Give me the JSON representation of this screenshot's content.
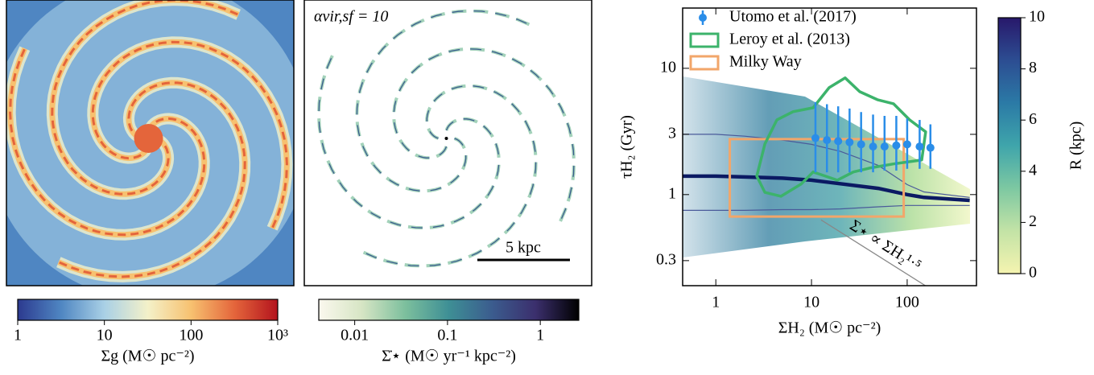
{
  "chart_data": [
    {
      "type": "map",
      "colorbar": {
        "label": "Σg (M☉ pc⁻²)",
        "log": true,
        "lim": [
          1,
          1000
        ],
        "ticks": [
          1,
          10,
          100,
          {
            "value": 1000,
            "label": "10³"
          }
        ],
        "colors": [
          "#2c3a8f",
          "#4f86c2",
          "#a9d0e6",
          "#f4f1c9",
          "#f7c170",
          "#e4653b",
          "#b3131d"
        ]
      }
    },
    {
      "type": "map",
      "annotation": "αvir,sf = 10",
      "scalebar": "5 kpc",
      "colorbar": {
        "label": "Σ̇⋆ (M☉ yr⁻¹ kpc⁻²)",
        "log": true,
        "lim": [
          0.0041,
          2.6
        ],
        "ticks": [
          0.01,
          0.1,
          1
        ],
        "colors": [
          "#fbf8ee",
          "#d6e5c4",
          "#7cbf9d",
          "#3e8f95",
          "#3b5c8e",
          "#3b2f6d",
          "#000000"
        ]
      }
    },
    {
      "type": "scatter",
      "xlabel": "ΣH₂ (M☉ pc⁻²)",
      "ylabel": "τH₂ (Gyr)",
      "xlog": true,
      "ylog": true,
      "xlim": [
        0.45,
        530
      ],
      "ylim": [
        0.19,
        30
      ],
      "xticks": [
        1,
        10,
        100
      ],
      "yticks": [
        0.3,
        1,
        3,
        10
      ],
      "legend": "upper left",
      "series": [
        {
          "name": "Utomo et al. (2017)",
          "color": "#2a8de8",
          "x": [
            11,
            14.5,
            19,
            25,
            33,
            44,
            58,
            77,
            100,
            135,
            175
          ],
          "values": [
            2.8,
            2.7,
            2.65,
            2.6,
            2.5,
            2.4,
            2.4,
            2.45,
            2.5,
            2.4,
            2.35
          ],
          "lower": [
            1.5,
            1.5,
            1.5,
            1.5,
            1.5,
            1.5,
            1.55,
            1.55,
            1.6,
            1.6,
            1.6
          ],
          "upper": [
            5.4,
            5.2,
            5.0,
            4.8,
            4.5,
            4.3,
            4.2,
            4.2,
            4.0,
            3.9,
            3.6
          ]
        }
      ],
      "contours": [
        {
          "name": "Leroy et al. (2013)",
          "color": "#3cb36b",
          "x": [
            2.68,
            3.26,
            4.35,
            6.41,
            10.4,
            15.3,
            22.5,
            31.9,
            48.9,
            71.9,
            106,
            156,
            142,
            71.9,
            40.3,
            27.4,
            18.6,
            10.4,
            7.78,
            4.8,
            3.26
          ],
          "values": [
            1.4,
            2.52,
            3.91,
            4.53,
            4.87,
            7.03,
            8.39,
            6.53,
            5.64,
            5.24,
            3.91,
            3.14,
            1.88,
            1.75,
            1.62,
            1.51,
            1.3,
            1.51,
            1.21,
            0.97,
            1.04
          ]
        }
      ],
      "boxes": [
        {
          "name": "Milky Way",
          "color": "#f2a66a",
          "x": [
            1.4,
            92
          ],
          "y": [
            0.67,
            2.75
          ]
        }
      ],
      "lines": [
        {
          "color": "#0b1a63",
          "x": [
            0.45,
            1,
            2,
            5,
            10,
            20,
            50,
            100,
            150,
            450
          ],
          "values": [
            1.4,
            1.4,
            1.38,
            1.35,
            1.3,
            1.22,
            1.12,
            1.0,
            0.95,
            0.9
          ]
        },
        {
          "color": "#4a5a9a",
          "x": [
            0.45,
            1,
            2,
            5,
            10,
            20,
            50,
            100,
            150,
            450
          ],
          "values": [
            3.0,
            3.0,
            2.9,
            2.7,
            2.5,
            2.2,
            1.7,
            1.2,
            1.05,
            0.95
          ]
        },
        {
          "color": "#4a5a9a",
          "x": [
            0.45,
            1,
            2,
            5,
            10,
            20,
            50,
            100,
            150,
            450
          ],
          "values": [
            0.75,
            0.75,
            0.75,
            0.76,
            0.76,
            0.77,
            0.8,
            0.82,
            0.82,
            0.82
          ]
        }
      ],
      "reference_line": {
        "label": "Σ⋆ ∝ ΣH₂¹·⁵",
        "color": "#888888",
        "x": [
          12.6,
          155
        ],
        "y": [
          0.63,
          0.19
        ]
      },
      "colorbar": {
        "label": "R (kpc)",
        "lim": [
          0,
          10
        ],
        "ticks": [
          0,
          2,
          4,
          6,
          8,
          10
        ],
        "colors": [
          "#f5f4b0",
          "#c3e3a6",
          "#7dc8a2",
          "#3fa5ab",
          "#2b7aa6",
          "#2c4d92",
          "#28186b"
        ]
      }
    }
  ]
}
